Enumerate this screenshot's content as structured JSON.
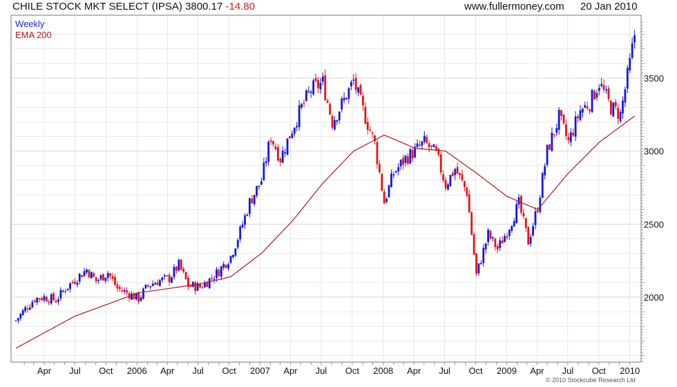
{
  "header": {
    "title": "CHILE  STOCK MKT SELECT (IPSA) 3800.17",
    "change": "-14.80",
    "site": "www.fullermoney.com",
    "date": "20 Jan 2010"
  },
  "legend": {
    "weekly": "Weekly",
    "ema": "EMA 200"
  },
  "copyright": "© 2010 Stockcube Research Ltd",
  "colors": {
    "up": "#1414e6",
    "down": "#e61414",
    "ema": "#b01a1a",
    "grid": "#d8d8d8"
  },
  "chart_data": {
    "type": "candlestick",
    "y_ticks": [
      2000,
      2500,
      3000,
      3500
    ],
    "ylim": [
      1500,
      3900
    ],
    "x_ticks": [
      "Apr",
      "Jul",
      "Oct",
      "2006",
      "Apr",
      "Jul",
      "Oct",
      "2007",
      "Apr",
      "Jul",
      "Oct",
      "2008",
      "Apr",
      "Jul",
      "Oct",
      "2009",
      "Apr",
      "Jul",
      "Oct",
      "2010"
    ],
    "weekly_close_path": [
      [
        "2005-01-07",
        1840
      ],
      [
        "2005-02-04",
        1920
      ],
      [
        "2005-03-04",
        1990
      ],
      [
        "2005-04-01",
        2000
      ],
      [
        "2005-05-06",
        1980
      ],
      [
        "2005-06-03",
        2060
      ],
      [
        "2005-07-01",
        2120
      ],
      [
        "2005-08-05",
        2190
      ],
      [
        "2005-09-02",
        2110
      ],
      [
        "2005-10-07",
        2170
      ],
      [
        "2005-11-04",
        2060
      ],
      [
        "2005-12-02",
        2030
      ],
      [
        "2006-01-06",
        1990
      ],
      [
        "2006-02-03",
        2080
      ],
      [
        "2006-03-03",
        2110
      ],
      [
        "2006-04-07",
        2130
      ],
      [
        "2006-05-05",
        2220
      ],
      [
        "2006-06-02",
        2080
      ],
      [
        "2006-07-07",
        2070
      ],
      [
        "2006-08-04",
        2120
      ],
      [
        "2006-09-01",
        2180
      ],
      [
        "2006-10-06",
        2280
      ],
      [
        "2006-11-03",
        2450
      ],
      [
        "2006-12-01",
        2650
      ],
      [
        "2007-01-05",
        2800
      ],
      [
        "2007-02-02",
        3100
      ],
      [
        "2007-03-02",
        2950
      ],
      [
        "2007-04-06",
        3150
      ],
      [
        "2007-05-04",
        3300
      ],
      [
        "2007-06-01",
        3420
      ],
      [
        "2007-07-06",
        3470
      ],
      [
        "2007-08-03",
        3200
      ],
      [
        "2007-09-07",
        3350
      ],
      [
        "2007-10-05",
        3480
      ],
      [
        "2007-11-02",
        3280
      ],
      [
        "2007-12-07",
        3050
      ],
      [
        "2008-01-04",
        2650
      ],
      [
        "2008-02-01",
        2850
      ],
      [
        "2008-03-07",
        2950
      ],
      [
        "2008-04-04",
        3000
      ],
      [
        "2008-05-02",
        3060
      ],
      [
        "2008-06-06",
        2980
      ],
      [
        "2008-07-04",
        2770
      ],
      [
        "2008-08-01",
        2880
      ],
      [
        "2008-09-05",
        2720
      ],
      [
        "2008-10-03",
        2150
      ],
      [
        "2008-11-07",
        2430
      ],
      [
        "2008-12-05",
        2330
      ],
      [
        "2009-01-02",
        2450
      ],
      [
        "2009-02-06",
        2640
      ],
      [
        "2009-03-06",
        2380
      ],
      [
        "2009-04-03",
        2620
      ],
      [
        "2009-05-01",
        3000
      ],
      [
        "2009-06-05",
        3230
      ],
      [
        "2009-07-03",
        3060
      ],
      [
        "2009-08-07",
        3280
      ],
      [
        "2009-09-04",
        3330
      ],
      [
        "2009-10-02",
        3470
      ],
      [
        "2009-11-06",
        3300
      ],
      [
        "2009-12-04",
        3250
      ],
      [
        "2010-01-01",
        3600
      ],
      [
        "2010-01-15",
        3800
      ]
    ],
    "ema_path": [
      [
        "2005-01-07",
        1650
      ],
      [
        "2005-07-01",
        1870
      ],
      [
        "2006-01-06",
        2030
      ],
      [
        "2006-07-07",
        2090
      ],
      [
        "2006-10-06",
        2140
      ],
      [
        "2007-01-05",
        2300
      ],
      [
        "2007-04-06",
        2520
      ],
      [
        "2007-07-06",
        2780
      ],
      [
        "2007-10-05",
        3000
      ],
      [
        "2008-01-04",
        3110
      ],
      [
        "2008-04-04",
        3020
      ],
      [
        "2008-07-04",
        3000
      ],
      [
        "2008-10-03",
        2850
      ],
      [
        "2009-01-02",
        2690
      ],
      [
        "2009-04-03",
        2600
      ],
      [
        "2009-07-03",
        2850
      ],
      [
        "2009-10-02",
        3060
      ],
      [
        "2010-01-15",
        3240
      ]
    ]
  }
}
